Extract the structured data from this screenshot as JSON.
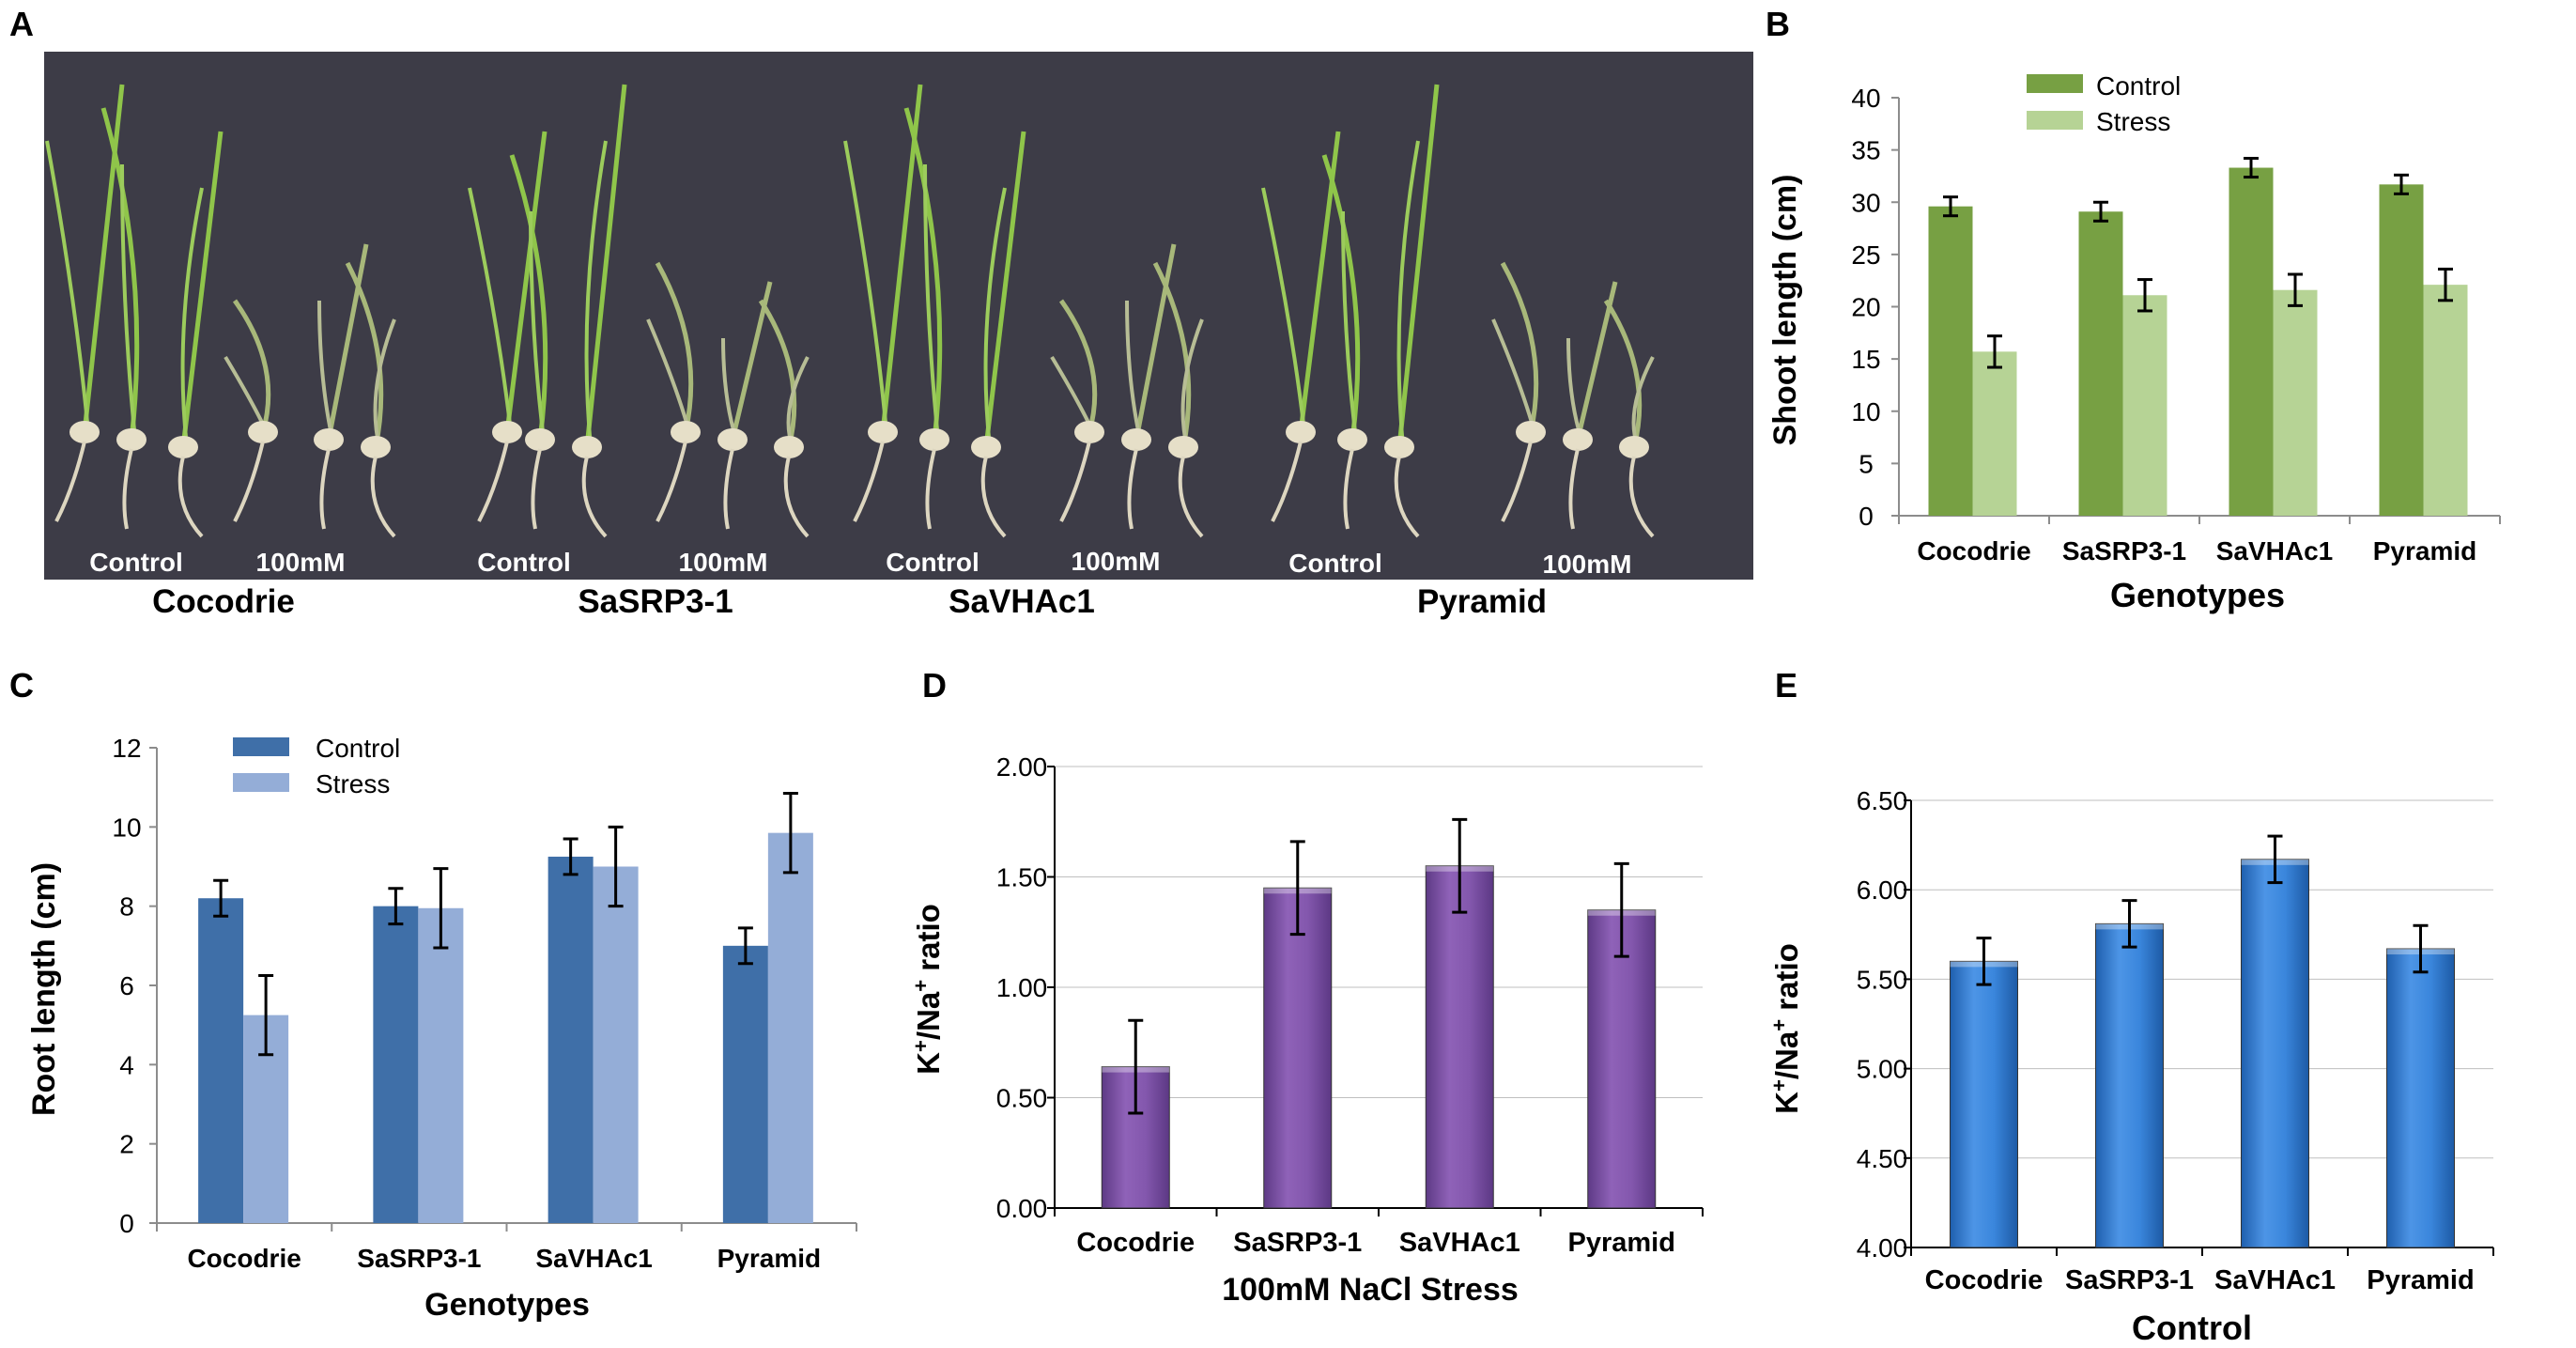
{
  "panels": {
    "A": {
      "letter": "A",
      "captions": [
        "Control",
        "100mM",
        "Control",
        "100mM",
        "Control",
        "100mM",
        "Control",
        "100mM"
      ],
      "genotypes": [
        "Cocodrie",
        "SaSRP3-1",
        "SaVHAc1",
        "Pyramid"
      ]
    },
    "B": {
      "letter": "B"
    },
    "C": {
      "letter": "C"
    },
    "D": {
      "letter": "D"
    },
    "E": {
      "letter": "E"
    }
  },
  "colors": {
    "b_control": "#77A043",
    "b_stress": "#B6D395",
    "c_control": "#3F6FA8",
    "c_stress": "#94ADD7",
    "d_bar": "#7B4FA6",
    "e_bar": "#2F7AD2"
  },
  "chart_data": [
    {
      "id": "B",
      "type": "bar",
      "title": "",
      "xlabel": "Genotypes",
      "ylabel": "Shoot length (cm)",
      "categories": [
        "Cocodrie",
        "SaSRP3-1",
        "SaVHAc1",
        "Pyramid"
      ],
      "ylim": [
        0,
        40
      ],
      "yticks": [
        0,
        5,
        10,
        15,
        20,
        25,
        30,
        35,
        40
      ],
      "tick_decimals": 0,
      "legend": "top-center",
      "series": [
        {
          "name": "Control",
          "values": [
            29.6,
            29.1,
            33.3,
            31.7
          ],
          "errors": [
            0.9,
            0.9,
            0.9,
            0.9
          ]
        },
        {
          "name": "Stress",
          "values": [
            15.7,
            21.1,
            21.6,
            22.1
          ],
          "errors": [
            1.5,
            1.5,
            1.5,
            1.5
          ]
        }
      ]
    },
    {
      "id": "C",
      "type": "bar",
      "title": "",
      "xlabel": "Genotypes",
      "ylabel": "Root length (cm)",
      "categories": [
        "Cocodrie",
        "SaSRP3-1",
        "SaVHAc1",
        "Pyramid"
      ],
      "ylim": [
        0,
        12
      ],
      "yticks": [
        0,
        2,
        4,
        6,
        8,
        10,
        12
      ],
      "tick_decimals": 0,
      "legend": "top-left",
      "series": [
        {
          "name": "Control",
          "values": [
            8.2,
            8.0,
            9.25,
            7.0
          ],
          "errors": [
            0.45,
            0.45,
            0.45,
            0.45
          ]
        },
        {
          "name": "Stress",
          "values": [
            5.25,
            7.95,
            9.0,
            9.85
          ],
          "errors": [
            1.0,
            1.0,
            1.0,
            1.0
          ]
        }
      ]
    },
    {
      "id": "D",
      "type": "bar",
      "title": "",
      "xlabel": "100mM NaCl Stress",
      "ylabel": "K+/Na+ ratio",
      "ylabel_parts": [
        "K",
        "+",
        "/Na",
        "+",
        " ratio"
      ],
      "categories": [
        "Cocodrie",
        "SaSRP3-1",
        "SaVHAc1",
        "Pyramid"
      ],
      "ylim": [
        0,
        2
      ],
      "yticks": [
        0,
        0.5,
        1,
        1.5,
        2
      ],
      "tick_decimals": 2,
      "series": [
        {
          "name": "100mM NaCl Stress",
          "values": [
            0.64,
            1.45,
            1.55,
            1.35
          ],
          "errors": [
            0.21,
            0.21,
            0.21,
            0.21
          ]
        }
      ]
    },
    {
      "id": "E",
      "type": "bar",
      "title": "",
      "xlabel": "Control",
      "ylabel": "K+/Na+ ratio",
      "ylabel_parts": [
        "K",
        "+",
        "/Na",
        "+",
        " ratio"
      ],
      "categories": [
        "Cocodrie",
        "SaSRP3-1",
        "SaVHAc1",
        "Pyramid"
      ],
      "ylim": [
        4,
        6.5
      ],
      "yticks": [
        4,
        4.5,
        5,
        5.5,
        6,
        6.5
      ],
      "tick_decimals": 2,
      "series": [
        {
          "name": "Control",
          "values": [
            5.6,
            5.81,
            6.17,
            5.67
          ],
          "errors": [
            0.13,
            0.13,
            0.13,
            0.13
          ]
        }
      ]
    }
  ]
}
